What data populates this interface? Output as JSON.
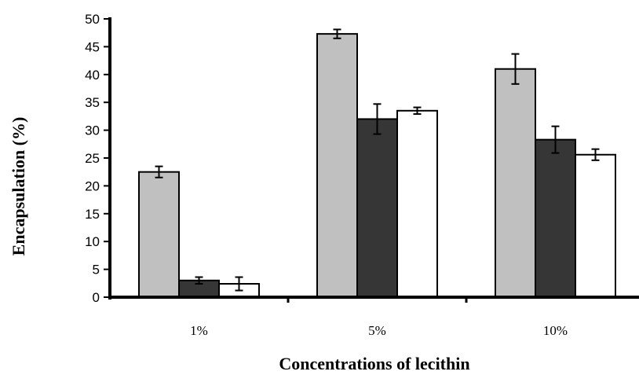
{
  "chart_data": {
    "type": "bar",
    "title": "",
    "xlabel": "Concentrations of lecithin",
    "ylabel": "Encapsulation (%)",
    "categories": [
      "1%",
      "5%",
      "10%"
    ],
    "ylim": [
      0,
      50
    ],
    "yticks": [
      0,
      5,
      10,
      15,
      20,
      25,
      30,
      35,
      40,
      45,
      50
    ],
    "grid": false,
    "legend": "none",
    "series": [
      {
        "color": "#c0c0c0",
        "values": [
          22.5,
          47.3,
          41.0
        ],
        "errors": [
          1.0,
          0.8,
          2.7
        ]
      },
      {
        "color": "#363636",
        "values": [
          3.0,
          32.0,
          28.3
        ],
        "errors": [
          0.6,
          2.7,
          2.4
        ]
      },
      {
        "color": "#ffffff",
        "values": [
          2.4,
          33.5,
          25.6
        ],
        "errors": [
          1.2,
          0.6,
          1.0
        ]
      }
    ]
  }
}
